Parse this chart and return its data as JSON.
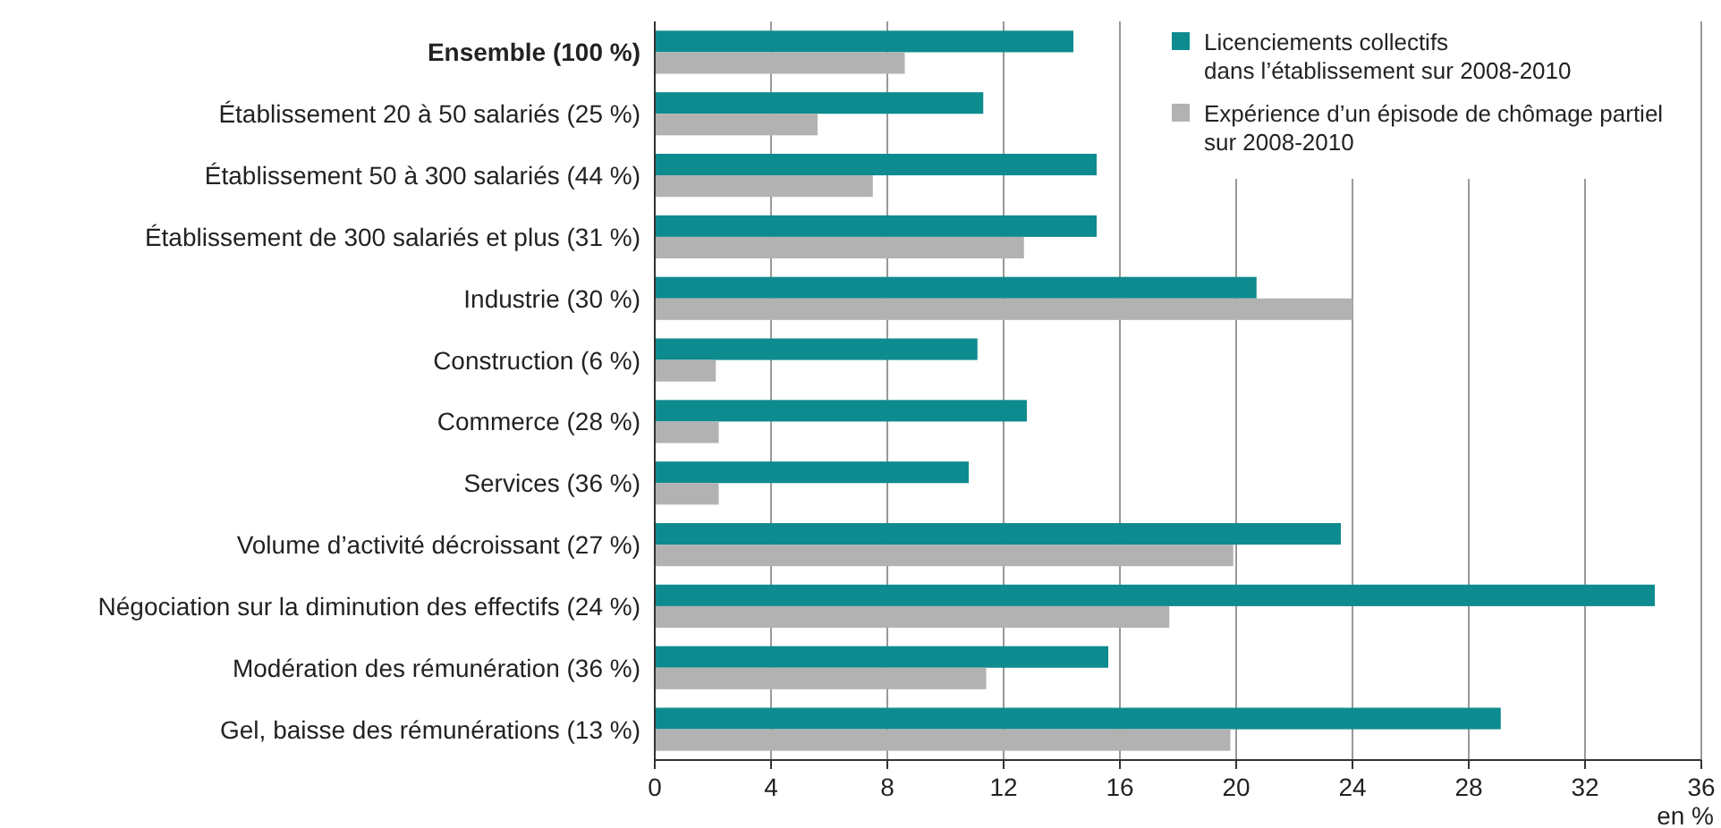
{
  "chart_data": {
    "type": "bar",
    "orientation": "horizontal",
    "xlabel": "en %",
    "categories": [
      "Ensemble (100 %)",
      "Établissement 20 à 50 salariés (25 %)",
      "Établissement 50 à 300 salariés (44 %)",
      "Établissement de 300 salariés et plus (31 %)",
      "Industrie (30 %)",
      "Construction (6 %)",
      "Commerce (28 %)",
      "Services (36 %)",
      "Volume d’activité décroissant (27 %)",
      "Négociation sur la diminution des effectifs (24 %)",
      "Modération des rémunération (36 %)",
      "Gel, baisse des rémunérations (13 %)"
    ],
    "series": [
      {
        "name": "Licenciements collectifs\ndans l’établissement sur 2008-2010",
        "color": "#0e8b8e",
        "values": [
          14.4,
          11.3,
          15.2,
          15.2,
          20.7,
          11.1,
          12.8,
          10.8,
          23.6,
          34.4,
          15.6,
          29.1
        ]
      },
      {
        "name": "Expérience d’un épisode de chômage partiel\nsur 2008-2010",
        "color": "#b2b2b2",
        "values": [
          8.6,
          5.6,
          7.5,
          12.7,
          24.0,
          2.1,
          2.2,
          2.2,
          19.9,
          17.7,
          11.4,
          19.8
        ]
      }
    ],
    "xlim": [
      0,
      36
    ],
    "xticks": [
      0,
      4,
      8,
      12,
      16,
      20,
      24,
      28,
      32,
      36
    ],
    "grid": "x",
    "legend": "top right"
  }
}
